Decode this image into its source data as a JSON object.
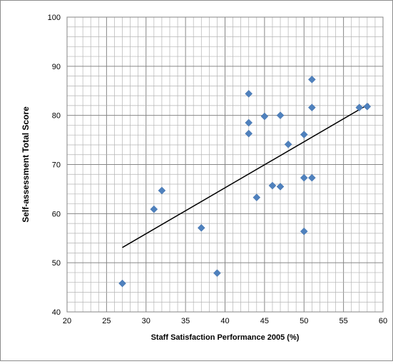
{
  "chart_data": {
    "type": "scatter",
    "xlabel": "Staff Satisfaction  Performance 2005 (%)",
    "ylabel": "Self-assessment Total Score",
    "xlim": [
      20,
      60
    ],
    "ylim": [
      40,
      100
    ],
    "x_major_ticks": [
      20,
      25,
      30,
      35,
      40,
      45,
      50,
      55,
      60
    ],
    "y_major_ticks": [
      40,
      50,
      60,
      70,
      80,
      90,
      100
    ],
    "x_minor_step": 1,
    "y_minor_step": 2,
    "grid": "major and minor",
    "marker": "diamond",
    "marker_color": "#4f81bd",
    "trendline_color": "#000000",
    "series": [
      {
        "points": [
          {
            "x": 27,
            "y": 45.8
          },
          {
            "x": 31,
            "y": 60.9
          },
          {
            "x": 32,
            "y": 64.7
          },
          {
            "x": 37,
            "y": 57.1
          },
          {
            "x": 39,
            "y": 47.9
          },
          {
            "x": 43,
            "y": 84.4
          },
          {
            "x": 43,
            "y": 78.5
          },
          {
            "x": 43,
            "y": 76.3
          },
          {
            "x": 44,
            "y": 63.3
          },
          {
            "x": 45,
            "y": 79.8
          },
          {
            "x": 46,
            "y": 65.7
          },
          {
            "x": 47,
            "y": 80.0
          },
          {
            "x": 47,
            "y": 65.5
          },
          {
            "x": 48,
            "y": 74.1
          },
          {
            "x": 50,
            "y": 76.1
          },
          {
            "x": 50,
            "y": 67.3
          },
          {
            "x": 50,
            "y": 56.4
          },
          {
            "x": 51,
            "y": 87.3
          },
          {
            "x": 51,
            "y": 81.6
          },
          {
            "x": 51,
            "y": 67.3
          },
          {
            "x": 57,
            "y": 81.6
          },
          {
            "x": 58,
            "y": 81.8
          }
        ]
      }
    ],
    "trendline": {
      "x": [
        27,
        58.2
      ],
      "y": [
        53.1,
        82.3
      ]
    }
  }
}
